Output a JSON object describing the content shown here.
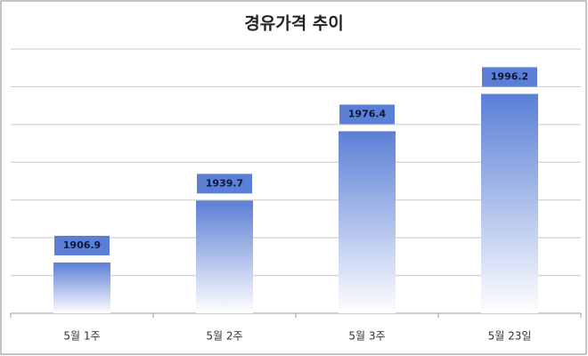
{
  "chart_data": {
    "type": "bar",
    "title": "경유가격 추이",
    "categories": [
      "5월 1주",
      "5월 2주",
      "5월 3주",
      "5월 23일"
    ],
    "values": [
      1906.9,
      1939.7,
      1976.4,
      1996.2
    ],
    "color": "#5b7fd6",
    "ylim": [
      1880,
      2020
    ],
    "yticks": [
      1880,
      1900,
      1920,
      1940,
      1960,
      1980,
      2000,
      2020
    ],
    "y_tick_labels": false,
    "grid": true
  }
}
